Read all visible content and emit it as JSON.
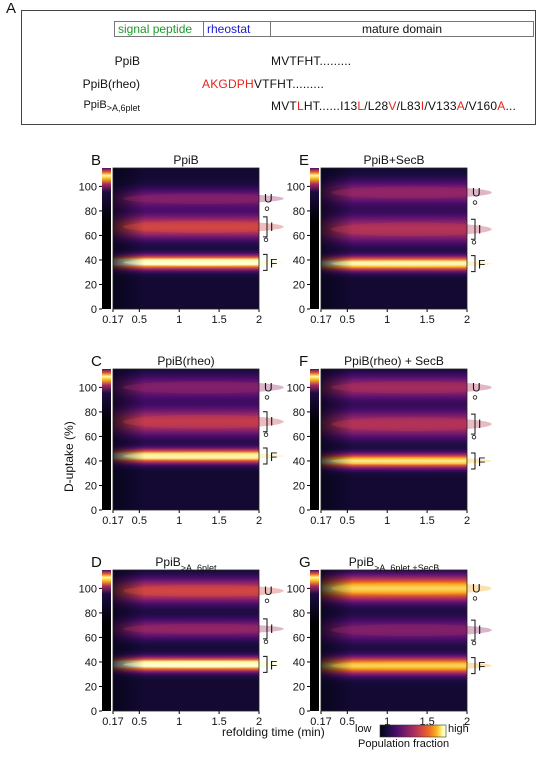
{
  "figure": {
    "panel_A_letter": "A",
    "segments": {
      "signal": "signal peptide",
      "rheostat": "rheostat",
      "mature": "mature domain"
    },
    "colors": {
      "signal": "#1a9a2a",
      "rheostat": "#1a1ad0",
      "mutation": "#e8231c"
    },
    "rows": [
      {
        "label": "PpiB",
        "label_sub": "",
        "parts": [
          {
            "t": "MVTFHT.........",
            "red": false
          }
        ]
      },
      {
        "label": "PpiB(rheo)",
        "label_sub": "",
        "parts": [
          {
            "t": "AKGDPH",
            "red": true
          },
          {
            "t": "VTFHT.........",
            "red": false
          }
        ]
      },
      {
        "label": "PpiB",
        "label_sub": ">A,6plet",
        "parts": [
          {
            "t": "MVT",
            "red": false
          },
          {
            "t": "L",
            "red": true
          },
          {
            "t": "HT......I13",
            "red": false
          },
          {
            "t": "L",
            "red": true
          },
          {
            "t": "/L28",
            "red": false
          },
          {
            "t": "V",
            "red": true
          },
          {
            "t": "/L83",
            "red": false
          },
          {
            "t": "I",
            "red": true
          },
          {
            "t": "/V133",
            "red": false
          },
          {
            "t": "A",
            "red": true
          },
          {
            "t": "/V160",
            "red": false
          },
          {
            "t": "A",
            "red": true
          },
          {
            "t": "...",
            "red": false
          }
        ]
      }
    ],
    "ylabel": "D-uptake (%)",
    "xlabel": "refolding time (min)",
    "colorbar": {
      "low": "low",
      "high": "high",
      "label": "Population fraction"
    },
    "state_labels": {
      "U": "U",
      "I": "I",
      "F": "F"
    }
  },
  "chart_data": [
    {
      "type": "heatmap",
      "letter": "B",
      "title": "PpiB",
      "title_sub": "",
      "x_ticks": [
        "0.17",
        "0.5",
        "1",
        "1.5",
        "2"
      ],
      "y_ticks": [
        "0",
        "20",
        "40",
        "60",
        "80",
        "100"
      ],
      "xlim": [
        0.17,
        2
      ],
      "ylim": [
        0,
        115
      ],
      "bands": [
        {
          "center": 38,
          "width": 4,
          "intensity": 1.0,
          "state": "F"
        },
        {
          "center": 67,
          "width": 7,
          "intensity": 0.55,
          "state": "I"
        },
        {
          "center": 90,
          "width": 6,
          "intensity": 0.3,
          "state": "U"
        }
      ]
    },
    {
      "type": "heatmap",
      "letter": "E",
      "title": "PpiB+SecB",
      "title_sub": "",
      "x_ticks": [
        "0.17",
        "0.5",
        "1",
        "1.5",
        "2"
      ],
      "y_ticks": [
        "0",
        "20",
        "40",
        "60",
        "80",
        "100"
      ],
      "xlim": [
        0.17,
        2
      ],
      "ylim": [
        0,
        115
      ],
      "bands": [
        {
          "center": 37,
          "width": 4,
          "intensity": 0.95,
          "state": "F"
        },
        {
          "center": 65,
          "width": 8,
          "intensity": 0.45,
          "state": "I"
        },
        {
          "center": 95,
          "width": 7,
          "intensity": 0.35,
          "state": "U"
        }
      ]
    },
    {
      "type": "heatmap",
      "letter": "C",
      "title": "PpiB(rheo)",
      "title_sub": "",
      "x_ticks": [
        "0.17",
        "0.5",
        "1",
        "1.5",
        "2"
      ],
      "y_ticks": [
        "0",
        "20",
        "40",
        "60",
        "80",
        "100"
      ],
      "xlim": [
        0.17,
        2
      ],
      "ylim": [
        0,
        115
      ],
      "bands": [
        {
          "center": 44,
          "width": 4,
          "intensity": 0.95,
          "state": "F"
        },
        {
          "center": 72,
          "width": 8,
          "intensity": 0.5,
          "state": "I"
        },
        {
          "center": 100,
          "width": 7,
          "intensity": 0.3,
          "state": "U"
        }
      ]
    },
    {
      "type": "heatmap",
      "letter": "F",
      "title": "PpiB(rheo) + SecB",
      "title_sub": "",
      "x_ticks": [
        "0.17",
        "0.5",
        "1",
        "1.5",
        "2"
      ],
      "y_ticks": [
        "0",
        "20",
        "40",
        "60",
        "80",
        "100"
      ],
      "xlim": [
        0.17,
        2
      ],
      "ylim": [
        0,
        115
      ],
      "bands": [
        {
          "center": 40,
          "width": 4,
          "intensity": 0.9,
          "state": "F"
        },
        {
          "center": 70,
          "width": 8,
          "intensity": 0.45,
          "state": "I"
        },
        {
          "center": 100,
          "width": 7,
          "intensity": 0.4,
          "state": "U"
        }
      ]
    },
    {
      "type": "heatmap",
      "letter": "D",
      "title": "PpiB",
      "title_sub": ">A, 6plet",
      "x_ticks": [
        "0.17",
        "0.5",
        "1",
        "1.5",
        "2"
      ],
      "y_ticks": [
        "0",
        "20",
        "40",
        "60",
        "80",
        "100"
      ],
      "xlim": [
        0.17,
        2
      ],
      "ylim": [
        0,
        115
      ],
      "bands": [
        {
          "center": 38,
          "width": 4,
          "intensity": 1.0,
          "state": "F"
        },
        {
          "center": 67,
          "width": 6,
          "intensity": 0.35,
          "state": "I"
        },
        {
          "center": 98,
          "width": 7,
          "intensity": 0.55,
          "state": "U"
        }
      ]
    },
    {
      "type": "heatmap",
      "letter": "G",
      "title": "PpiB",
      "title_sub": ">A, 6plet +SecB",
      "x_ticks": [
        "0.17",
        "0.5",
        "1",
        "1.5",
        "2"
      ],
      "y_ticks": [
        "0",
        "20",
        "40",
        "60",
        "80",
        "100"
      ],
      "xlim": [
        0.17,
        2
      ],
      "ylim": [
        0,
        115
      ],
      "bands": [
        {
          "center": 37,
          "width": 5,
          "intensity": 0.85,
          "state": "F"
        },
        {
          "center": 66,
          "width": 7,
          "intensity": 0.3,
          "state": "I"
        },
        {
          "center": 100,
          "width": 7,
          "intensity": 0.85,
          "state": "U"
        }
      ]
    }
  ]
}
